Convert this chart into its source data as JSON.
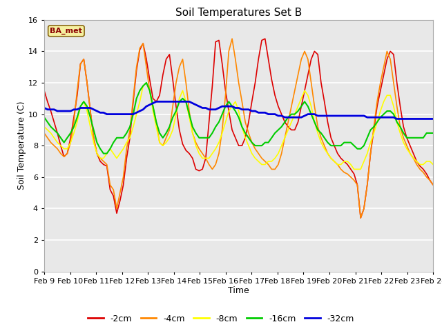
{
  "title": "Soil Temperatures Set B",
  "xlabel": "Time",
  "ylabel": "Soil Temperature (C)",
  "legend_label": "BA_met",
  "series_labels": [
    "-2cm",
    "-4cm",
    "-8cm",
    "-16cm",
    "-32cm"
  ],
  "series_colors": [
    "#dd0000",
    "#ff8800",
    "#ffff00",
    "#00cc00",
    "#0000dd"
  ],
  "line_widths": [
    1.2,
    1.2,
    1.2,
    1.5,
    2.0
  ],
  "ylim": [
    0,
    16
  ],
  "fig_bg_color": "#ffffff",
  "plot_bg_color": "#e8e8e8",
  "title_fontsize": 11,
  "axis_label_fontsize": 9,
  "tick_fontsize": 8,
  "tick_labels": [
    "Feb 9",
    "Feb 10",
    "Feb 11",
    "Feb 12",
    "Feb 13",
    "Feb 14",
    "Feb 15",
    "Feb 16",
    "Feb 17",
    "Feb 18",
    "Feb 19",
    "Feb 20",
    "Feb 21",
    "Feb 22",
    "Feb 23",
    "Feb 24"
  ],
  "x_tick_positions": [
    0,
    24,
    48,
    72,
    96,
    120,
    144,
    168,
    192,
    216,
    240,
    264,
    288,
    312,
    336,
    360
  ],
  "data_2cm": [
    11.5,
    10.8,
    10.2,
    9.5,
    8.8,
    8.0,
    7.3,
    7.5,
    8.5,
    9.8,
    11.2,
    13.2,
    13.5,
    12.0,
    10.2,
    8.5,
    7.5,
    7.0,
    6.8,
    6.7,
    5.2,
    4.8,
    3.7,
    4.5,
    5.5,
    7.2,
    8.5,
    10.8,
    12.8,
    14.1,
    14.5,
    13.5,
    12.2,
    11.0,
    10.8,
    11.2,
    12.5,
    13.5,
    13.8,
    12.2,
    10.5,
    9.0,
    8.1,
    7.7,
    7.5,
    7.2,
    6.5,
    6.4,
    6.5,
    7.2,
    9.5,
    11.8,
    14.6,
    14.7,
    13.2,
    11.5,
    10.2,
    9.0,
    8.5,
    8.0,
    8.0,
    8.5,
    9.5,
    10.8,
    12.0,
    13.5,
    14.7,
    14.8,
    13.5,
    12.2,
    11.2,
    10.5,
    10.0,
    9.5,
    9.2,
    9.0,
    9.0,
    9.5,
    10.5,
    11.5,
    12.5,
    13.5,
    14.0,
    13.8,
    12.0,
    10.8,
    9.5,
    8.5,
    8.0,
    7.5,
    7.2,
    7.0,
    6.8,
    6.5,
    6.2,
    5.5,
    3.4,
    4.0,
    5.5,
    7.5,
    9.0,
    10.5,
    11.5,
    12.5,
    13.5,
    14.0,
    13.8,
    12.0,
    10.5,
    9.2,
    8.5,
    8.0,
    7.5,
    7.0,
    6.7,
    6.5,
    6.2,
    5.8,
    5.5
  ],
  "data_4cm": [
    8.8,
    8.5,
    8.2,
    8.0,
    7.8,
    7.5,
    7.3,
    7.5,
    8.2,
    9.5,
    11.5,
    13.2,
    13.5,
    12.0,
    10.2,
    8.5,
    7.5,
    7.2,
    7.0,
    6.8,
    5.5,
    5.2,
    4.0,
    5.0,
    6.0,
    7.8,
    9.0,
    11.0,
    13.0,
    14.2,
    14.5,
    13.0,
    11.5,
    10.5,
    9.5,
    8.2,
    8.0,
    8.5,
    9.0,
    10.5,
    12.0,
    13.0,
    13.5,
    12.0,
    10.2,
    8.8,
    8.2,
    7.8,
    7.5,
    7.2,
    6.8,
    6.5,
    6.8,
    7.5,
    9.0,
    11.2,
    14.0,
    14.8,
    13.5,
    12.0,
    10.8,
    9.5,
    8.8,
    8.2,
    7.8,
    7.5,
    7.2,
    7.0,
    6.8,
    6.5,
    6.5,
    6.8,
    7.5,
    8.5,
    9.5,
    10.5,
    11.5,
    12.5,
    13.5,
    14.0,
    13.5,
    12.0,
    10.5,
    9.2,
    8.5,
    8.0,
    7.5,
    7.2,
    7.0,
    6.8,
    6.5,
    6.3,
    6.2,
    6.0,
    5.8,
    5.5,
    3.4,
    4.0,
    5.5,
    7.5,
    9.2,
    10.8,
    12.0,
    13.0,
    14.0,
    13.5,
    12.0,
    10.5,
    9.2,
    8.5,
    8.0,
    7.5,
    7.2,
    6.8,
    6.5,
    6.3,
    6.0,
    5.8,
    5.5
  ],
  "data_8cm": [
    9.2,
    9.0,
    8.8,
    8.5,
    8.2,
    8.0,
    7.8,
    7.8,
    8.2,
    8.8,
    9.5,
    10.5,
    10.8,
    10.2,
    9.2,
    8.2,
    7.5,
    7.2,
    7.2,
    7.5,
    7.8,
    7.5,
    7.2,
    7.5,
    7.8,
    8.2,
    8.5,
    9.2,
    10.0,
    10.8,
    11.8,
    12.0,
    11.5,
    10.2,
    9.2,
    8.2,
    8.0,
    8.2,
    8.5,
    9.0,
    10.0,
    11.0,
    11.5,
    10.8,
    9.8,
    8.8,
    8.0,
    7.5,
    7.2,
    7.2,
    7.2,
    7.5,
    7.8,
    8.2,
    8.8,
    9.5,
    10.2,
    10.5,
    10.8,
    10.2,
    9.2,
    8.5,
    8.0,
    7.5,
    7.2,
    7.0,
    6.8,
    6.8,
    7.0,
    7.0,
    7.2,
    7.5,
    8.0,
    8.5,
    9.0,
    9.5,
    10.0,
    10.5,
    11.0,
    11.5,
    11.2,
    10.5,
    9.5,
    8.8,
    8.2,
    7.8,
    7.5,
    7.2,
    7.0,
    6.8,
    6.8,
    7.0,
    7.0,
    6.8,
    6.5,
    6.5,
    6.5,
    7.0,
    7.5,
    8.2,
    8.8,
    9.5,
    10.2,
    10.8,
    11.2,
    11.2,
    10.5,
    9.5,
    8.8,
    8.2,
    7.8,
    7.5,
    7.2,
    7.0,
    6.8,
    6.8,
    7.0,
    7.0,
    6.8
  ],
  "data_16cm": [
    9.8,
    9.5,
    9.2,
    9.0,
    8.8,
    8.5,
    8.2,
    8.5,
    8.8,
    9.2,
    9.8,
    10.5,
    10.8,
    10.5,
    9.8,
    9.0,
    8.2,
    7.8,
    7.5,
    7.5,
    7.8,
    8.2,
    8.5,
    8.5,
    8.5,
    8.8,
    9.2,
    10.0,
    11.0,
    11.5,
    11.8,
    12.0,
    11.5,
    10.5,
    9.5,
    8.8,
    8.5,
    8.8,
    9.2,
    9.8,
    10.2,
    10.8,
    11.0,
    10.8,
    10.0,
    9.2,
    8.8,
    8.5,
    8.5,
    8.5,
    8.5,
    8.8,
    9.2,
    9.5,
    10.0,
    10.5,
    10.8,
    10.5,
    10.2,
    9.8,
    9.2,
    8.8,
    8.5,
    8.2,
    8.0,
    8.0,
    8.0,
    8.2,
    8.2,
    8.5,
    8.8,
    9.0,
    9.2,
    9.5,
    9.8,
    10.0,
    10.0,
    10.2,
    10.5,
    10.8,
    10.5,
    10.0,
    9.5,
    9.0,
    8.8,
    8.5,
    8.2,
    8.0,
    8.0,
    8.0,
    8.0,
    8.2,
    8.2,
    8.2,
    8.0,
    7.8,
    7.8,
    8.0,
    8.5,
    9.0,
    9.2,
    9.5,
    9.8,
    10.0,
    10.2,
    10.2,
    10.0,
    9.5,
    9.2,
    8.8,
    8.5,
    8.5,
    8.5,
    8.5,
    8.5,
    8.5,
    8.8,
    8.8,
    8.8
  ],
  "data_32cm": [
    10.4,
    10.3,
    10.3,
    10.3,
    10.2,
    10.2,
    10.2,
    10.2,
    10.2,
    10.3,
    10.3,
    10.4,
    10.4,
    10.4,
    10.4,
    10.3,
    10.2,
    10.1,
    10.1,
    10.0,
    10.0,
    10.0,
    10.0,
    10.0,
    10.0,
    10.0,
    10.0,
    10.0,
    10.1,
    10.2,
    10.3,
    10.5,
    10.6,
    10.7,
    10.8,
    10.8,
    10.8,
    10.8,
    10.8,
    10.8,
    10.8,
    10.8,
    10.8,
    10.8,
    10.8,
    10.7,
    10.6,
    10.5,
    10.4,
    10.4,
    10.3,
    10.3,
    10.3,
    10.4,
    10.5,
    10.5,
    10.5,
    10.5,
    10.4,
    10.4,
    10.3,
    10.3,
    10.3,
    10.2,
    10.2,
    10.1,
    10.1,
    10.1,
    10.0,
    10.0,
    10.0,
    9.9,
    9.9,
    9.8,
    9.8,
    9.8,
    9.8,
    9.8,
    9.8,
    9.9,
    10.0,
    10.0,
    10.0,
    9.9,
    9.9,
    9.9,
    9.9,
    9.9,
    9.9,
    9.9,
    9.9,
    9.9,
    9.9,
    9.9,
    9.9,
    9.9,
    9.9,
    9.9,
    9.8,
    9.8,
    9.8,
    9.8,
    9.8,
    9.8,
    9.8,
    9.8,
    9.8,
    9.7,
    9.7,
    9.7,
    9.7,
    9.7,
    9.7,
    9.7,
    9.7,
    9.7,
    9.7,
    9.7,
    9.7
  ]
}
